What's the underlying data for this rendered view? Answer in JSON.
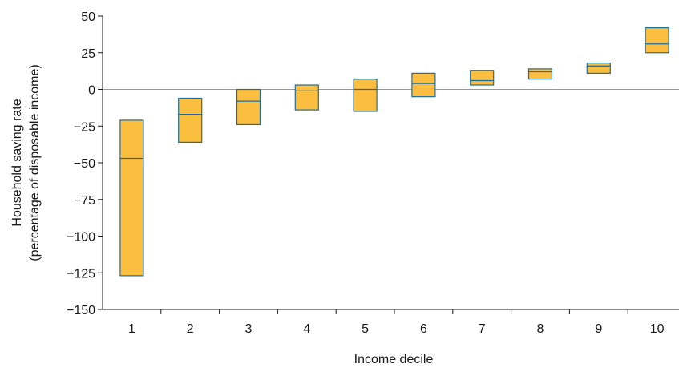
{
  "chart_data": {
    "type": "box",
    "title": "",
    "xlabel": "Income decile",
    "ylabel": [
      "Household saving rate",
      "(percentage of disposable income)"
    ],
    "ylim": [
      -150,
      50
    ],
    "yticks": [
      50,
      25,
      0,
      -25,
      -50,
      -75,
      -100,
      -125,
      -150
    ],
    "ytick_labels": [
      "50",
      "25",
      "0",
      "−25",
      "−50",
      "−75",
      "−100",
      "−125",
      "−150"
    ],
    "categories": [
      "1",
      "2",
      "3",
      "4",
      "5",
      "6",
      "7",
      "8",
      "9",
      "10"
    ],
    "boxes": [
      {
        "low": -127,
        "median": -47,
        "high": -21
      },
      {
        "low": -36,
        "median": -17,
        "high": -6
      },
      {
        "low": -24,
        "median": -8,
        "high": 0
      },
      {
        "low": -14,
        "median": -1,
        "high": 3
      },
      {
        "low": -15,
        "median": 0,
        "high": 7
      },
      {
        "low": -5,
        "median": 4,
        "high": 11
      },
      {
        "low": 3,
        "median": 6,
        "high": 13
      },
      {
        "low": 7,
        "median": 12,
        "high": 14
      },
      {
        "low": 11,
        "median": 16,
        "high": 18
      },
      {
        "low": 25,
        "median": 31,
        "high": 42
      }
    ],
    "grid": false,
    "colors": {
      "fill": "#fbbe3e",
      "stroke": "#1e6e9a",
      "axis": "#1a1a1a",
      "zero_line": "#999999"
    }
  }
}
